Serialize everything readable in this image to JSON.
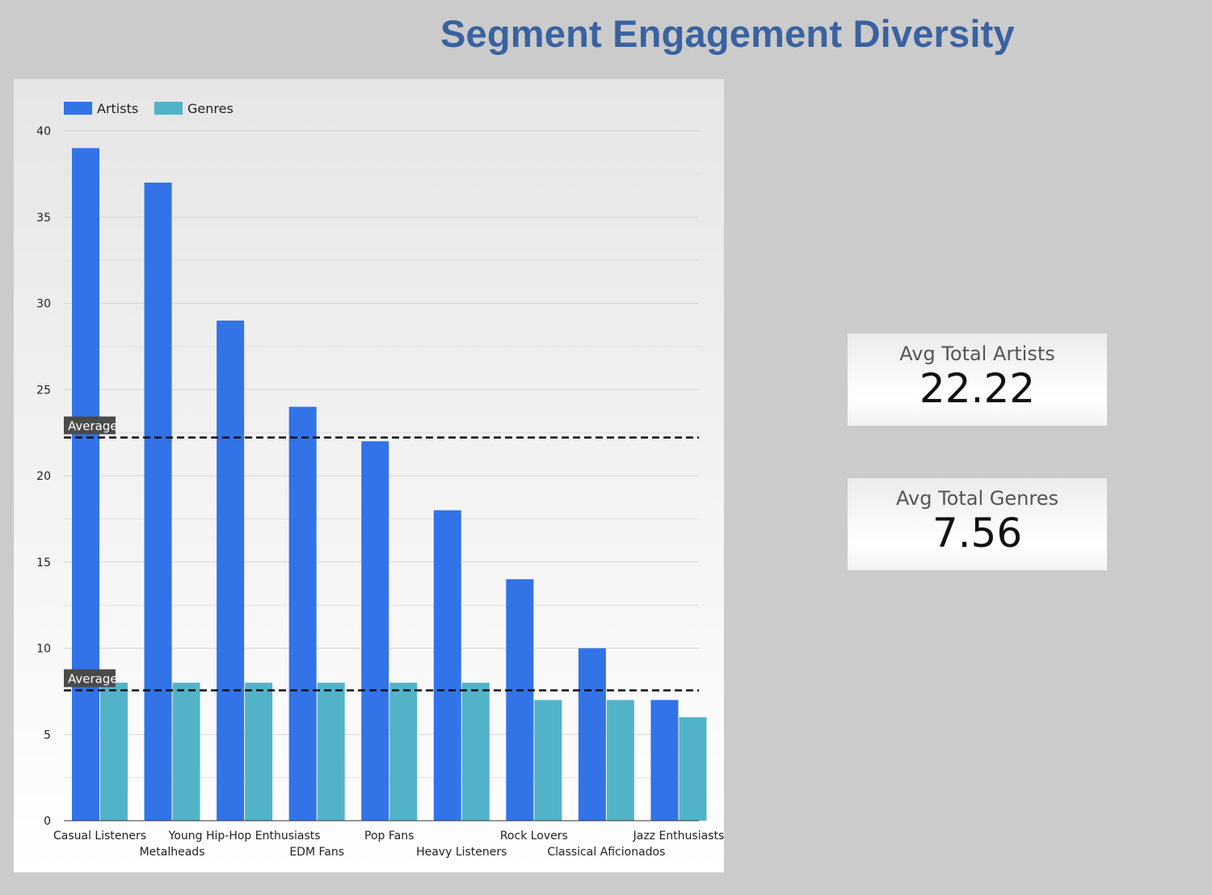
{
  "title": "Segment Engagement Diversity",
  "kpis": {
    "artists": {
      "label": "Avg Total Artists",
      "value": "22.22"
    },
    "genres": {
      "label": "Avg Total Genres",
      "value": "7.56"
    }
  },
  "colors": {
    "artists": "#3273e8",
    "genres": "#52b3c8",
    "avg_line": "#111111"
  },
  "chart_data": {
    "type": "bar",
    "categories": [
      "Casual Listeners",
      "Metalheads",
      "Young Hip-Hop Enthusiasts",
      "EDM Fans",
      "Pop Fans",
      "Heavy Listeners",
      "Rock Lovers",
      "Classical Aficionados",
      "Jazz Enthusiasts"
    ],
    "series": [
      {
        "name": "Artists",
        "values": [
          39,
          37,
          29,
          24,
          22,
          18,
          14,
          10,
          7
        ]
      },
      {
        "name": "Genres",
        "values": [
          8,
          8,
          8,
          8,
          8,
          8,
          7,
          7,
          6
        ]
      }
    ],
    "reference_lines": [
      {
        "label": "Average",
        "series": "Artists",
        "value": 22.22
      },
      {
        "label": "Average",
        "series": "Genres",
        "value": 7.56
      }
    ],
    "ylim": [
      0,
      40
    ],
    "yticks": [
      0,
      5,
      10,
      15,
      20,
      25,
      30,
      35,
      40
    ],
    "legend_position": "top-left",
    "grid": true
  }
}
